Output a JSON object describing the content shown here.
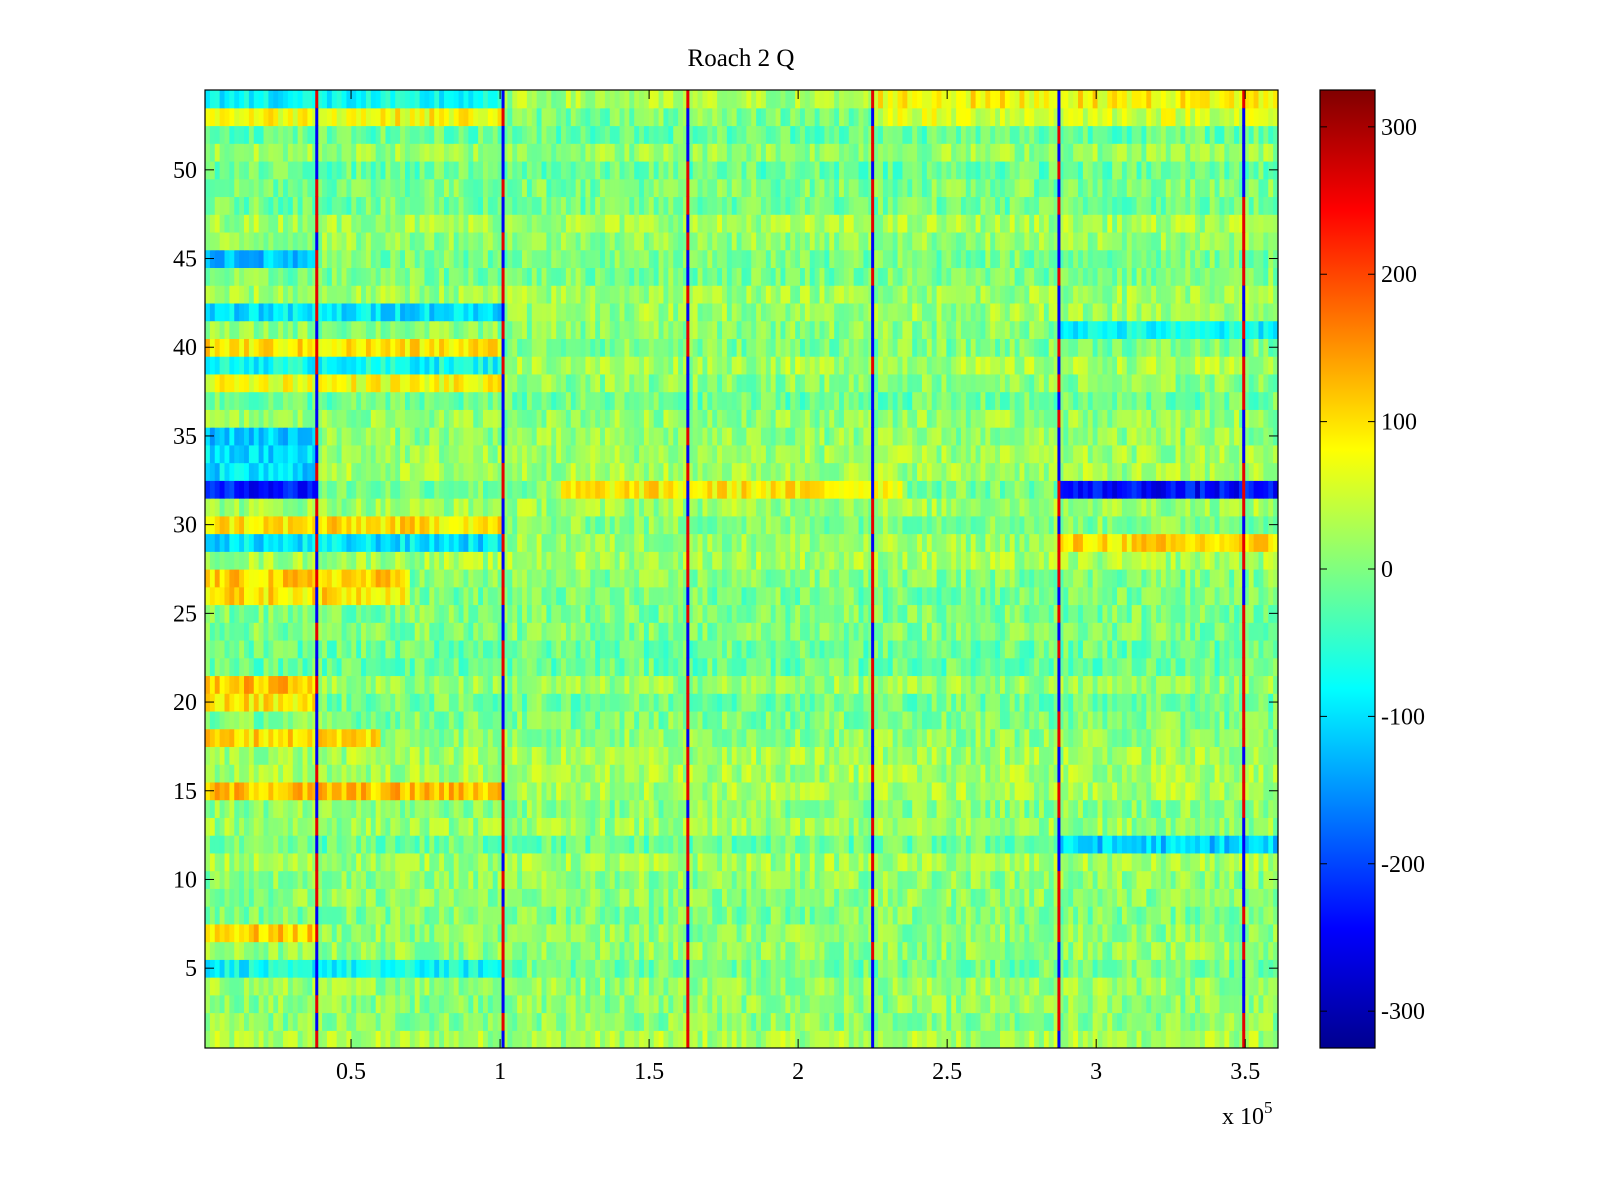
{
  "chart_data": {
    "type": "heatmap",
    "title": "Roach 2 Q",
    "xlabel": "",
    "ylabel": "",
    "x_multiplier_label": {
      "base": "x 10",
      "exponent": "5"
    },
    "xlim": [
      0.01,
      3.61
    ],
    "ylim": [
      0.5,
      54.5
    ],
    "x_ticks": [
      0.5,
      1,
      1.5,
      2,
      2.5,
      3,
      3.5
    ],
    "x_tick_labels": [
      "0.5",
      "1",
      "1.5",
      "2",
      "2.5",
      "3",
      "3.5"
    ],
    "y_ticks": [
      5,
      10,
      15,
      20,
      25,
      30,
      35,
      40,
      45,
      50
    ],
    "y_tick_labels": [
      "5",
      "10",
      "15",
      "20",
      "25",
      "30",
      "35",
      "40",
      "45",
      "50"
    ],
    "rows": 54,
    "grid": false,
    "colormap": "jet",
    "colorbar": {
      "clim": [
        -325,
        325
      ],
      "ticks": [
        -300,
        -200,
        -100,
        0,
        100,
        200,
        300
      ],
      "tick_labels": [
        "-300",
        "-200",
        "-100",
        "0",
        "100",
        "200",
        "300"
      ],
      "location": "right"
    },
    "colors": {
      "jet": [
        "#00008f",
        "#0000ff",
        "#00ffff",
        "#ffff00",
        "#ff0000",
        "#800000"
      ]
    },
    "vertical_lines": [
      0.385,
      1.01,
      1.63,
      2.25,
      2.875,
      3.495
    ],
    "row_segments": [
      {
        "rows": [
          1,
          1
        ],
        "x_start": 0.01,
        "x_end": 3.61,
        "value": 20
      },
      {
        "rows": [
          2,
          2
        ],
        "x_start": 0.01,
        "x_end": 3.61,
        "value": -10
      },
      {
        "rows": [
          5,
          5
        ],
        "x_start": 0.01,
        "x_end": 1.0,
        "value": -65
      },
      {
        "rows": [
          7,
          7
        ],
        "x_start": 0.01,
        "x_end": 0.38,
        "value": 105
      },
      {
        "rows": [
          12,
          12
        ],
        "x_start": 2.88,
        "x_end": 3.61,
        "value": -90
      },
      {
        "rows": [
          15,
          15
        ],
        "x_start": 0.01,
        "x_end": 1.0,
        "value": 100
      },
      {
        "rows": [
          18,
          18
        ],
        "x_start": 0.01,
        "x_end": 0.6,
        "value": 100
      },
      {
        "rows": [
          20,
          21
        ],
        "x_start": 0.01,
        "x_end": 0.38,
        "value": 110
      },
      {
        "rows": [
          26,
          27
        ],
        "x_start": 0.01,
        "x_end": 0.7,
        "value": 110
      },
      {
        "rows": [
          29,
          29
        ],
        "x_start": 0.01,
        "x_end": 1.0,
        "value": -110
      },
      {
        "rows": [
          29,
          29
        ],
        "x_start": 2.88,
        "x_end": 3.61,
        "value": 90
      },
      {
        "rows": [
          30,
          30
        ],
        "x_start": 0.01,
        "x_end": 1.0,
        "value": 100
      },
      {
        "rows": [
          32,
          32
        ],
        "x_start": 0.01,
        "x_end": 0.38,
        "value": -220
      },
      {
        "rows": [
          32,
          32
        ],
        "x_start": 1.2,
        "x_end": 2.35,
        "value": 100
      },
      {
        "rows": [
          32,
          32
        ],
        "x_start": 2.88,
        "x_end": 3.61,
        "value": -230
      },
      {
        "rows": [
          33,
          35
        ],
        "x_start": 0.01,
        "x_end": 0.38,
        "value": -120
      },
      {
        "rows": [
          38,
          38
        ],
        "x_start": 0.01,
        "x_end": 1.0,
        "value": 75
      },
      {
        "rows": [
          39,
          39
        ],
        "x_start": 0.01,
        "x_end": 1.0,
        "value": -95
      },
      {
        "rows": [
          40,
          40
        ],
        "x_start": 0.01,
        "x_end": 1.0,
        "value": 100
      },
      {
        "rows": [
          42,
          42
        ],
        "x_start": 0.01,
        "x_end": 1.0,
        "value": -110
      },
      {
        "rows": [
          41,
          41
        ],
        "x_start": 2.88,
        "x_end": 3.61,
        "value": -80
      },
      {
        "rows": [
          45,
          45
        ],
        "x_start": 0.01,
        "x_end": 0.38,
        "value": -110
      },
      {
        "rows": [
          53,
          53
        ],
        "x_start": 0.01,
        "x_end": 1.0,
        "value": 90
      },
      {
        "rows": [
          53,
          54
        ],
        "x_start": 2.25,
        "x_end": 3.61,
        "value": 65
      },
      {
        "rows": [
          54,
          54
        ],
        "x_start": 0.01,
        "x_end": 1.0,
        "value": -100
      }
    ]
  }
}
